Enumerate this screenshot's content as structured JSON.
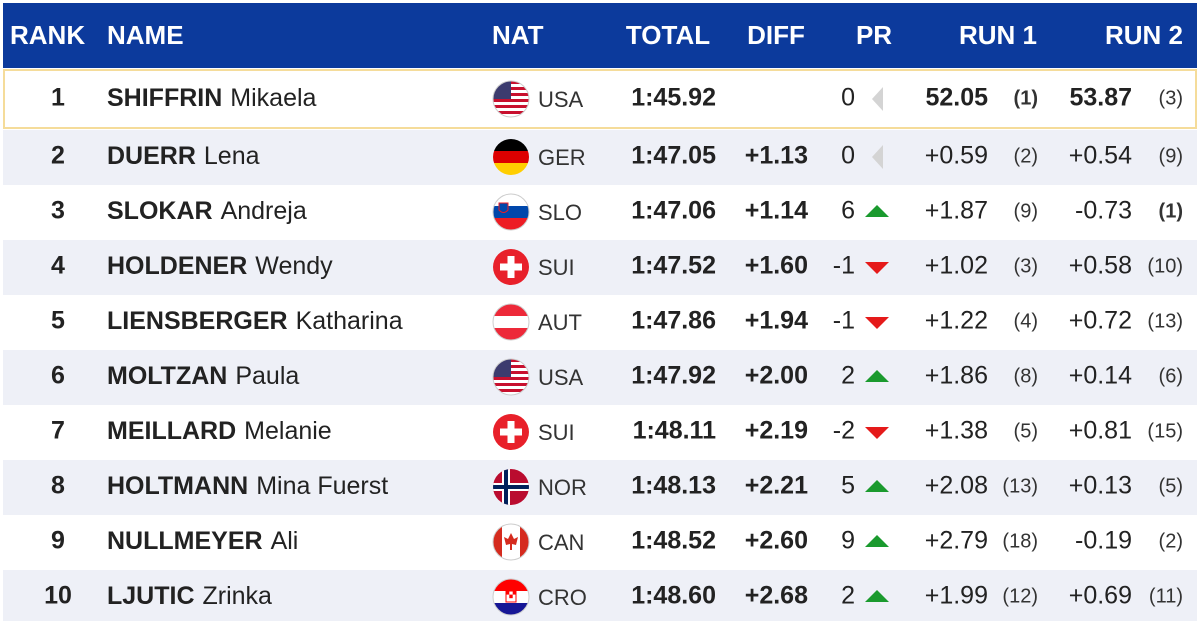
{
  "header": {
    "rank": "RANK",
    "name": "NAME",
    "nat": "NAT",
    "total": "TOTAL",
    "diff": "DIFF",
    "pr": "PR",
    "run1": "RUN 1",
    "run2": "RUN 2"
  },
  "table": {
    "rows": [
      {
        "rank": 1,
        "surname": "SHIFFRIN",
        "firstname": "Mikaela",
        "nat": "USA",
        "total": "1:45.92",
        "pr": 0,
        "run1": "52.05",
        "run1_rank": "(1)",
        "run2": "53.87",
        "run2_rank": "(3)"
      },
      {
        "rank": 2,
        "surname": "DUERR",
        "firstname": "Lena",
        "nat": "GER",
        "total": "1:47.05",
        "diff": "+1.13",
        "pr": 0,
        "run1": "+0.59",
        "run1_rank": "(2)",
        "run2": "+0.54",
        "run2_rank": "(9)"
      },
      {
        "rank": 3,
        "surname": "SLOKAR",
        "firstname": "Andreja",
        "nat": "SLO",
        "total": "1:47.06",
        "diff": "+1.14",
        "pr": 6,
        "run1": "+1.87",
        "run1_rank": "(9)",
        "run2": "-0.73",
        "run2_rank": "(1)"
      },
      {
        "rank": 4,
        "surname": "HOLDENER",
        "firstname": "Wendy",
        "nat": "SUI",
        "total": "1:47.52",
        "diff": "+1.60",
        "pr": -1,
        "run1": "+1.02",
        "run1_rank": "(3)",
        "run2": "+0.58",
        "run2_rank": "(10)"
      },
      {
        "rank": 5,
        "surname": "LIENSBERGER",
        "firstname": "Katharina",
        "nat": "AUT",
        "total": "1:47.86",
        "diff": "+1.94",
        "pr": -1,
        "run1": "+1.22",
        "run1_rank": "(4)",
        "run2": "+0.72",
        "run2_rank": "(13)"
      },
      {
        "rank": 6,
        "surname": "MOLTZAN",
        "firstname": "Paula",
        "nat": "USA",
        "total": "1:47.92",
        "diff": "+2.00",
        "pr": 2,
        "run1": "+1.86",
        "run1_rank": "(8)",
        "run2": "+0.14",
        "run2_rank": "(6)"
      },
      {
        "rank": 7,
        "surname": "MEILLARD",
        "firstname": "Melanie",
        "nat": "SUI",
        "total": "1:48.11",
        "diff": "+2.19",
        "pr": -2,
        "run1": "+1.38",
        "run1_rank": "(5)",
        "run2": "+0.81",
        "run2_rank": "(15)"
      },
      {
        "rank": 8,
        "surname": "HOLTMANN",
        "firstname": "Mina Fuerst",
        "nat": "NOR",
        "total": "1:48.13",
        "diff": "+2.21",
        "pr": 5,
        "run1": "+2.08",
        "run1_rank": "(13)",
        "run2": "+0.13",
        "run2_rank": "(5)"
      },
      {
        "rank": 9,
        "surname": "NULLMEYER",
        "firstname": "Ali",
        "nat": "CAN",
        "total": "1:48.52",
        "diff": "+2.60",
        "pr": 9,
        "run1": "+2.79",
        "run1_rank": "(18)",
        "run2": "-0.19",
        "run2_rank": "(2)"
      },
      {
        "rank": 10,
        "surname": "LJUTIC",
        "firstname": "Zrinka",
        "nat": "CRO",
        "total": "1:48.60",
        "diff": "+2.68",
        "pr": 2,
        "run1": "+1.99",
        "run1_rank": "(12)",
        "run2": "+0.69",
        "run2_rank": "(11)"
      }
    ]
  }
}
